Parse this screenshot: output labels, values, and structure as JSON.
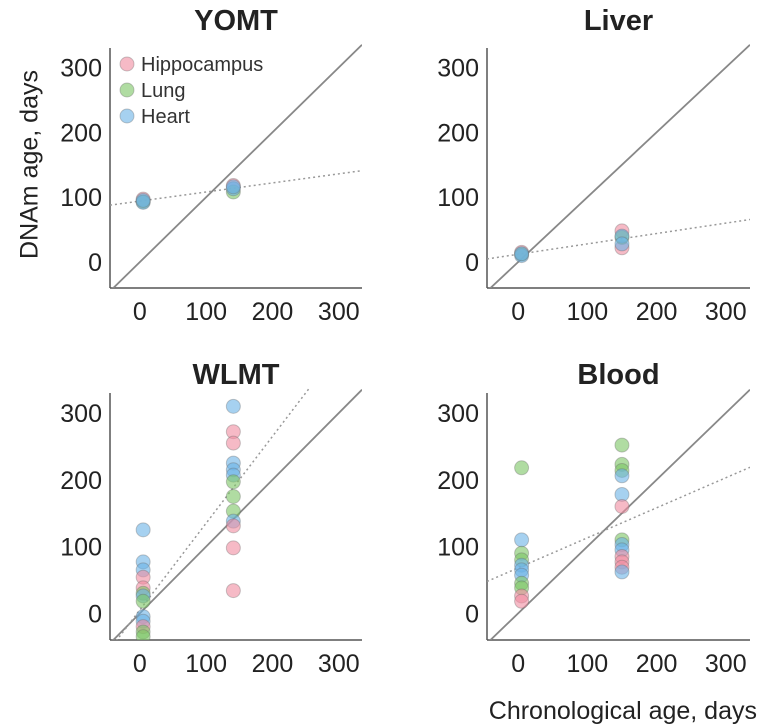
{
  "chart_data": {
    "type": "scatter",
    "ylabel": "DNAm age, days",
    "xlabel": "Chronological age, days",
    "xlim": [
      -45,
      335
    ],
    "ylim": [
      -40,
      330
    ],
    "ticks": [
      0,
      100,
      200,
      300
    ],
    "legend": {
      "placement": "top-left",
      "entries": [
        {
          "name": "Hippocampus",
          "color": "#f08ca0"
        },
        {
          "name": "Lung",
          "color": "#7cc464"
        },
        {
          "name": "Heart",
          "color": "#6ab2e6"
        }
      ]
    },
    "panels": [
      {
        "title": "YOMT",
        "fit": {
          "intercept": 94,
          "slope": 0.14
        },
        "points": [
          {
            "x": 5,
            "y": 97,
            "s": 0
          },
          {
            "x": 5,
            "y": 93,
            "s": 1
          },
          {
            "x": 5,
            "y": 92,
            "s": 2
          },
          {
            "x": 5,
            "y": 95,
            "s": 2
          },
          {
            "x": 141,
            "y": 118,
            "s": 0
          },
          {
            "x": 141,
            "y": 108,
            "s": 1
          },
          {
            "x": 141,
            "y": 113,
            "s": 2
          },
          {
            "x": 141,
            "y": 116,
            "s": 2
          }
        ]
      },
      {
        "title": "Liver",
        "fit": {
          "intercept": 12,
          "slope": 0.16
        },
        "points": [
          {
            "x": 5,
            "y": 15,
            "s": 0
          },
          {
            "x": 5,
            "y": 12,
            "s": 1
          },
          {
            "x": 5,
            "y": 10,
            "s": 2
          },
          {
            "x": 5,
            "y": 13,
            "s": 2
          },
          {
            "x": 150,
            "y": 48,
            "s": 0
          },
          {
            "x": 150,
            "y": 22,
            "s": 0
          },
          {
            "x": 150,
            "y": 38,
            "s": 1
          },
          {
            "x": 150,
            "y": 40,
            "s": 2
          },
          {
            "x": 150,
            "y": 28,
            "s": 2
          }
        ]
      },
      {
        "title": "WLMT",
        "fit": {
          "intercept": 5,
          "slope": 1.3
        },
        "points": [
          {
            "x": 5,
            "y": 125,
            "s": 2
          },
          {
            "x": 5,
            "y": 77,
            "s": 2
          },
          {
            "x": 5,
            "y": 65,
            "s": 2
          },
          {
            "x": 5,
            "y": 54,
            "s": 0
          },
          {
            "x": 5,
            "y": 38,
            "s": 0
          },
          {
            "x": 5,
            "y": 30,
            "s": 1
          },
          {
            "x": 5,
            "y": 26,
            "s": 2
          },
          {
            "x": 5,
            "y": 18,
            "s": 1
          },
          {
            "x": 5,
            "y": -5,
            "s": 2
          },
          {
            "x": 5,
            "y": -12,
            "s": 2
          },
          {
            "x": 5,
            "y": -20,
            "s": 0
          },
          {
            "x": 5,
            "y": -28,
            "s": 1
          },
          {
            "x": 5,
            "y": -35,
            "s": 1
          },
          {
            "x": 141,
            "y": 310,
            "s": 2
          },
          {
            "x": 141,
            "y": 272,
            "s": 0
          },
          {
            "x": 141,
            "y": 255,
            "s": 0
          },
          {
            "x": 141,
            "y": 225,
            "s": 2
          },
          {
            "x": 141,
            "y": 215,
            "s": 2
          },
          {
            "x": 141,
            "y": 207,
            "s": 2
          },
          {
            "x": 141,
            "y": 197,
            "s": 1
          },
          {
            "x": 141,
            "y": 175,
            "s": 1
          },
          {
            "x": 141,
            "y": 153,
            "s": 1
          },
          {
            "x": 141,
            "y": 138,
            "s": 2
          },
          {
            "x": 141,
            "y": 131,
            "s": 0
          },
          {
            "x": 141,
            "y": 98,
            "s": 0
          },
          {
            "x": 141,
            "y": 34,
            "s": 0
          }
        ]
      },
      {
        "title": "Blood",
        "fit": {
          "intercept": 68,
          "slope": 0.45
        },
        "points": [
          {
            "x": 5,
            "y": 218,
            "s": 1
          },
          {
            "x": 5,
            "y": 110,
            "s": 2
          },
          {
            "x": 5,
            "y": 90,
            "s": 1
          },
          {
            "x": 5,
            "y": 80,
            "s": 1
          },
          {
            "x": 5,
            "y": 72,
            "s": 2
          },
          {
            "x": 5,
            "y": 65,
            "s": 2
          },
          {
            "x": 5,
            "y": 57,
            "s": 2
          },
          {
            "x": 5,
            "y": 45,
            "s": 1
          },
          {
            "x": 5,
            "y": 38,
            "s": 1
          },
          {
            "x": 5,
            "y": 26,
            "s": 0
          },
          {
            "x": 5,
            "y": 18,
            "s": 0
          },
          {
            "x": 150,
            "y": 252,
            "s": 1
          },
          {
            "x": 150,
            "y": 223,
            "s": 1
          },
          {
            "x": 150,
            "y": 214,
            "s": 1
          },
          {
            "x": 150,
            "y": 206,
            "s": 2
          },
          {
            "x": 150,
            "y": 178,
            "s": 2
          },
          {
            "x": 150,
            "y": 160,
            "s": 0
          },
          {
            "x": 150,
            "y": 110,
            "s": 1
          },
          {
            "x": 150,
            "y": 103,
            "s": 2
          },
          {
            "x": 150,
            "y": 95,
            "s": 2
          },
          {
            "x": 150,
            "y": 85,
            "s": 0
          },
          {
            "x": 150,
            "y": 77,
            "s": 0
          },
          {
            "x": 150,
            "y": 69,
            "s": 0
          },
          {
            "x": 150,
            "y": 62,
            "s": 2
          }
        ]
      }
    ]
  }
}
